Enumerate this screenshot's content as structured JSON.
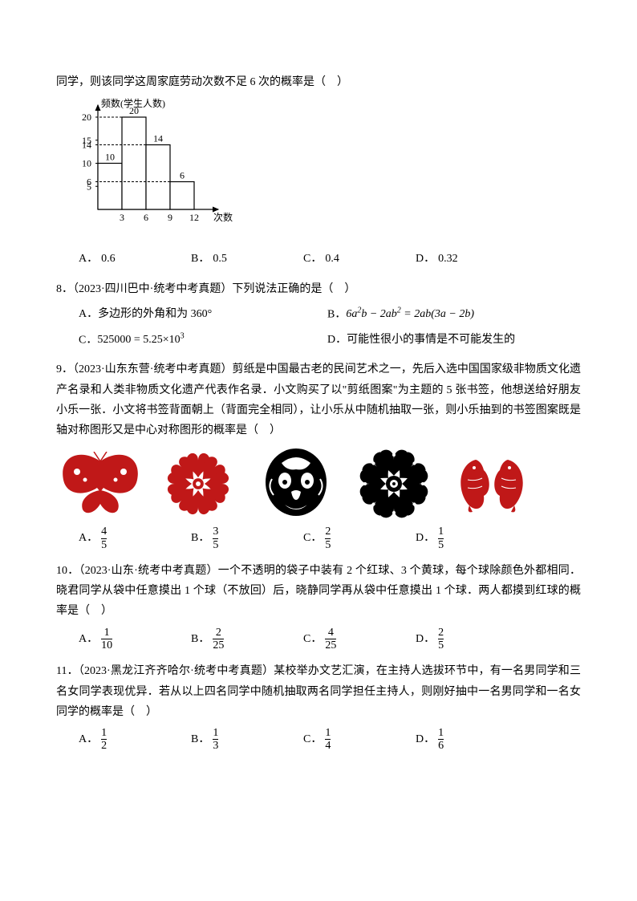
{
  "q7_cont": "同学，则该同学这周家庭劳动次数不足 6 次的概率是（　）",
  "hist": {
    "ylabel": "频数(学生人数)",
    "xlabel": "次数/次",
    "yticks": [
      5,
      10,
      15,
      20
    ],
    "xticks": [
      3,
      6,
      9,
      12
    ],
    "bars": [
      {
        "label": "10",
        "height": 10
      },
      {
        "label": "20",
        "height": 20
      },
      {
        "label": "14",
        "height": 14
      },
      {
        "label": "6",
        "height": 6
      }
    ],
    "axis_color": "#000",
    "bar_fill": "#ffffff",
    "bar_stroke": "#000",
    "font_size": 12
  },
  "q7_opts": {
    "A": "0.6",
    "B": "0.5",
    "C": "0.4",
    "D": "0.32"
  },
  "q8_stem": "8．（2023·四川巴中·统考中考真题）下列说法正确的是（　）",
  "q8_A": "A．多边形的外角和为 360°",
  "q8_B_prefix": "B．",
  "q8_B_math": "6a²b − 2ab² = 2ab(3a − 2b)",
  "q8_C_prefix": "C．",
  "q8_C_math": "525000 = 5.25×10³",
  "q8_D": "D．可能性很小的事情是不可能发生的",
  "q9_stem": "9．（2023·山东东营·统考中考真题）剪纸是中国最古老的民间艺术之一，先后入选中国国家级非物质文化遗产名录和人类非物质文化遗产代表作名录．小文购买了以\"剪纸图案\"为主题的 5 张书签，他想送给好朋友小乐一张．小文将书签背面朝上（背面完全相同），让小乐从中随机抽取一张，则小乐抽到的书签图案既是轴对称图形又是中心对称图形的概率是（　）",
  "papercut_colors": [
    "#c01818",
    "#c01818",
    "#000000",
    "#000000",
    "#c01818"
  ],
  "q9_opts": {
    "A": {
      "n": "4",
      "d": "5"
    },
    "B": {
      "n": "3",
      "d": "5"
    },
    "C": {
      "n": "2",
      "d": "5"
    },
    "D": {
      "n": "1",
      "d": "5"
    }
  },
  "q10_stem": "10．（2023·山东·统考中考真题）一个不透明的袋子中装有 2 个红球、3 个黄球，每个球除颜色外都相同．晓君同学从袋中任意摸出 1 个球（不放回）后，晓静同学再从袋中任意摸出 1 个球．两人都摸到红球的概率是（　）",
  "q10_opts": {
    "A": {
      "n": "1",
      "d": "10"
    },
    "B": {
      "n": "2",
      "d": "25"
    },
    "C": {
      "n": "4",
      "d": "25"
    },
    "D": {
      "n": "2",
      "d": "5"
    }
  },
  "q11_stem": "11．（2023·黑龙江齐齐哈尔·统考中考真题）某校举办文艺汇演，在主持人选拔环节中，有一名男同学和三名女同学表现优异．若从以上四名同学中随机抽取两名同学担任主持人，则刚好抽中一名男同学和一名女同学的概率是（　）",
  "q11_opts": {
    "A": {
      "n": "1",
      "d": "2"
    },
    "B": {
      "n": "1",
      "d": "3"
    },
    "C": {
      "n": "1",
      "d": "4"
    },
    "D": {
      "n": "1",
      "d": "6"
    }
  },
  "opt_labels": {
    "A": "A．",
    "B": "B．",
    "C": "C．",
    "D": "D．"
  }
}
